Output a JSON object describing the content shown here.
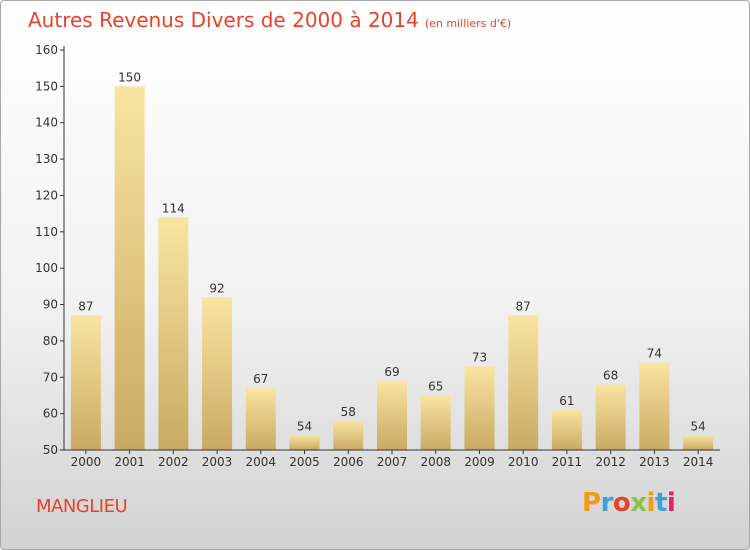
{
  "header": {
    "title": "Autres Revenus Divers de 2000 à 2014",
    "subtitle": "(en milliers d'€)"
  },
  "footer": {
    "commune": "MANGLIEU",
    "logo_text": "Proxiti"
  },
  "colors": {
    "title": "#e8432a",
    "bar_top": "#f9e4a2",
    "bar_bottom": "#c9aa62",
    "axis": "#333333",
    "logo_letters": [
      "#f39c12",
      "#3fa0d8",
      "#e8432a",
      "#8bc34a",
      "#f39c12",
      "#3fa0d8",
      "#e91e63"
    ]
  },
  "chart_data": {
    "type": "bar",
    "title": "Autres Revenus Divers de 2000 à 2014",
    "subtitle": "(en milliers d'€)",
    "xlabel": "",
    "ylabel": "",
    "categories": [
      "2000",
      "2001",
      "2002",
      "2003",
      "2004",
      "2005",
      "2006",
      "2007",
      "2008",
      "2009",
      "2010",
      "2011",
      "2012",
      "2013",
      "2014"
    ],
    "values": [
      87,
      150,
      114,
      92,
      67,
      54,
      58,
      69,
      65,
      73,
      87,
      61,
      68,
      74,
      54
    ],
    "ylim": [
      50,
      160
    ],
    "yticks": [
      50,
      60,
      70,
      80,
      90,
      100,
      110,
      120,
      130,
      140,
      150,
      160
    ],
    "grid": false,
    "legend": "none"
  }
}
